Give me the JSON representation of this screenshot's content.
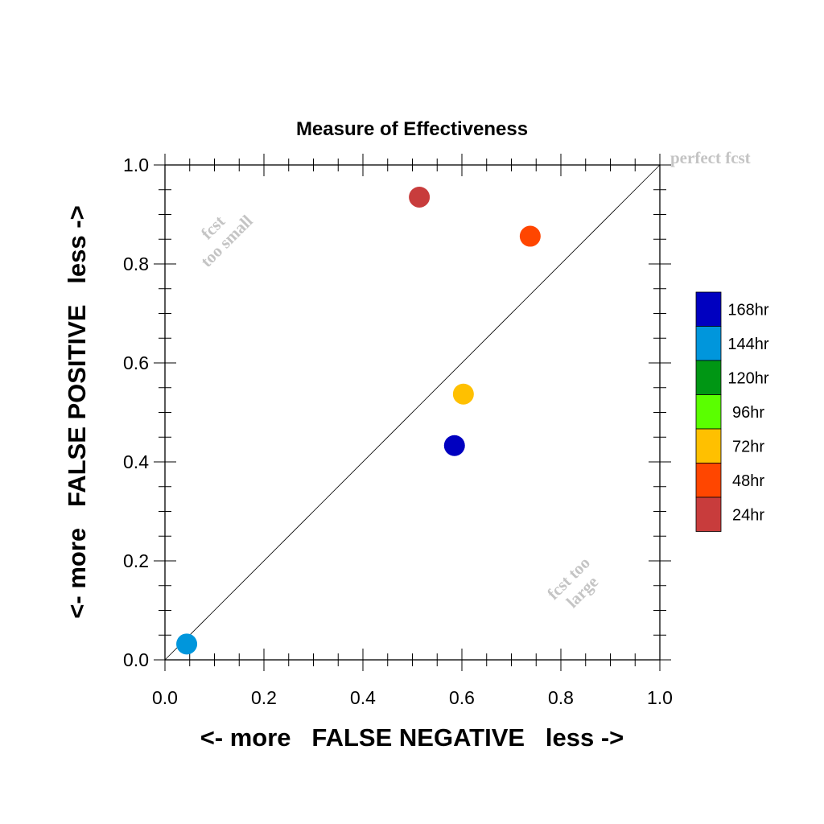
{
  "chart_data": {
    "type": "scatter",
    "title": "Measure of Effectiveness",
    "xlabel": "<- more   FALSE NEGATIVE   less ->",
    "ylabel": "<- more   FALSE POSITIVE   less ->",
    "xlim": [
      0.0,
      1.0
    ],
    "ylim": [
      0.0,
      1.0
    ],
    "x_ticks": [
      "0.0",
      "0.2",
      "0.4",
      "0.6",
      "0.8",
      "1.0"
    ],
    "y_ticks": [
      "0.0",
      "0.2",
      "0.4",
      "0.6",
      "0.8",
      "1.0"
    ],
    "grid": false,
    "reference_line": {
      "from": [
        0.0,
        0.0
      ],
      "to": [
        1.0,
        1.0
      ]
    },
    "annotations": {
      "perfect": "perfect fcst",
      "too_small_line1": "fcst",
      "too_small_line2": "too small",
      "too_large_line1": "fcst too",
      "too_large_line2": "large"
    },
    "legend_position": "right",
    "series": [
      {
        "name": "168hr",
        "color": "#0000c0",
        "x": 0.585,
        "y": 0.433
      },
      {
        "name": "144hr",
        "color": "#0096dc",
        "x": 0.044,
        "y": 0.032
      },
      {
        "name": "120hr",
        "color": "#009614",
        "x": null,
        "y": null
      },
      {
        "name": "96hr",
        "color": "#5aff00",
        "x": null,
        "y": null
      },
      {
        "name": "72hr",
        "color": "#ffc000",
        "x": 0.603,
        "y": 0.537
      },
      {
        "name": "48hr",
        "color": "#ff4600",
        "x": 0.738,
        "y": 0.856
      },
      {
        "name": "24hr",
        "color": "#c83c3c",
        "x": 0.514,
        "y": 0.935
      }
    ]
  }
}
